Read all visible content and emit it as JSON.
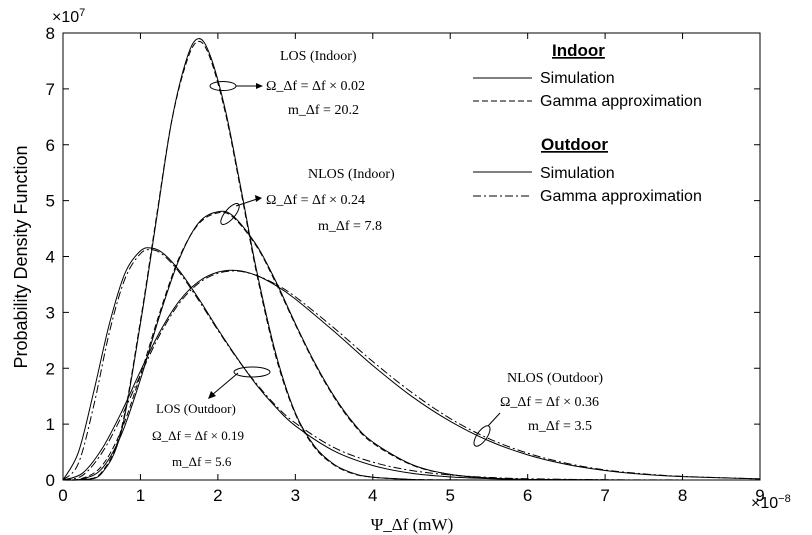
{
  "chart_data": {
    "type": "line",
    "xlabel": "Ψ_Δf  (mW)",
    "ylabel": "Probability Density Function",
    "x_multiplier": "×10^-8",
    "y_multiplier": "×10^7",
    "xlim": [
      0,
      9
    ],
    "ylim": [
      0,
      8
    ],
    "xticks": [
      "0",
      "1",
      "2",
      "3",
      "4",
      "5",
      "6",
      "7",
      "8",
      "9"
    ],
    "yticks": [
      "0",
      "1",
      "2",
      "3",
      "4",
      "5",
      "6",
      "7",
      "8"
    ],
    "grid": false,
    "legend": {
      "position": "top-right",
      "groups": [
        {
          "title": "Indoor",
          "entries": [
            {
              "label": "Simulation",
              "style": "solid"
            },
            {
              "label": "Gamma approximation",
              "style": "dashed"
            }
          ]
        },
        {
          "title": "Outdoor",
          "entries": [
            {
              "label": "Simulation",
              "style": "solid"
            },
            {
              "label": "Gamma approximation",
              "style": "dash-dot"
            }
          ]
        }
      ]
    },
    "series": [
      {
        "case": "LOS (Indoor)",
        "style": "solid",
        "x": [
          0.0,
          0.25,
          0.5,
          0.75,
          1.0,
          1.2,
          1.4,
          1.6,
          1.75,
          1.9,
          2.1,
          2.3,
          2.5,
          2.75,
          3.0,
          3.25,
          3.5,
          3.75,
          4.0,
          4.5,
          5.0,
          5.5,
          6.0
        ],
        "y": [
          0,
          0.01,
          0.12,
          0.85,
          2.8,
          4.6,
          6.4,
          7.55,
          7.9,
          7.6,
          6.6,
          5.2,
          3.75,
          2.25,
          1.2,
          0.6,
          0.28,
          0.12,
          0.05,
          0.01,
          0.002,
          0,
          0
        ]
      },
      {
        "case": "LOS (Indoor)",
        "style": "dashed",
        "x": [
          0.0,
          0.25,
          0.5,
          0.75,
          1.0,
          1.2,
          1.4,
          1.6,
          1.75,
          1.9,
          2.1,
          2.3,
          2.5,
          2.75,
          3.0,
          3.25,
          3.5,
          3.75,
          4.0,
          4.5,
          5.0,
          5.5,
          6.0
        ],
        "y": [
          0,
          0.01,
          0.14,
          0.9,
          2.85,
          4.65,
          6.4,
          7.5,
          7.85,
          7.55,
          6.55,
          5.15,
          3.7,
          2.2,
          1.18,
          0.58,
          0.27,
          0.11,
          0.05,
          0.01,
          0.002,
          0,
          0
        ]
      },
      {
        "case": "NLOS (Indoor)",
        "style": "solid",
        "x": [
          0.0,
          0.25,
          0.5,
          0.75,
          1.0,
          1.25,
          1.5,
          1.75,
          2.0,
          2.2,
          2.5,
          2.75,
          3.0,
          3.25,
          3.5,
          3.75,
          4.0,
          4.5,
          5.0,
          5.5,
          6.0,
          7.0,
          8.0,
          9.0
        ],
        "y": [
          0,
          0.02,
          0.2,
          0.8,
          1.8,
          2.95,
          3.95,
          4.6,
          4.8,
          4.72,
          4.2,
          3.55,
          2.8,
          2.1,
          1.5,
          1.02,
          0.68,
          0.28,
          0.1,
          0.035,
          0.01,
          0.001,
          0,
          0
        ]
      },
      {
        "case": "NLOS (Indoor)",
        "style": "dashed",
        "x": [
          0.0,
          0.25,
          0.5,
          0.75,
          1.0,
          1.25,
          1.5,
          1.75,
          2.0,
          2.2,
          2.5,
          2.75,
          3.0,
          3.25,
          3.5,
          3.75,
          4.0,
          4.5,
          5.0,
          5.5,
          6.0,
          7.0,
          8.0,
          9.0
        ],
        "y": [
          0,
          0.03,
          0.25,
          0.88,
          1.88,
          3.0,
          3.98,
          4.58,
          4.78,
          4.7,
          4.18,
          3.52,
          2.78,
          2.08,
          1.48,
          1.0,
          0.66,
          0.27,
          0.1,
          0.035,
          0.01,
          0.001,
          0,
          0
        ]
      },
      {
        "case": "LOS (Outdoor)",
        "style": "solid",
        "x": [
          0.0,
          0.2,
          0.4,
          0.6,
          0.8,
          1.0,
          1.15,
          1.3,
          1.5,
          1.75,
          2.0,
          2.25,
          2.5,
          2.75,
          3.0,
          3.5,
          4.0,
          4.5,
          5.0,
          5.5,
          6.0,
          7.0,
          8.0,
          9.0
        ],
        "y": [
          0,
          0.5,
          1.6,
          2.8,
          3.7,
          4.1,
          4.15,
          4.05,
          3.75,
          3.25,
          2.7,
          2.18,
          1.7,
          1.3,
          0.97,
          0.52,
          0.26,
          0.12,
          0.055,
          0.024,
          0.01,
          0.002,
          0,
          0
        ]
      },
      {
        "case": "LOS (Outdoor)",
        "style": "dash-dot",
        "x": [
          0.0,
          0.2,
          0.4,
          0.6,
          0.8,
          1.0,
          1.15,
          1.3,
          1.5,
          1.75,
          2.0,
          2.25,
          2.5,
          2.75,
          3.0,
          3.5,
          4.0,
          4.5,
          5.0,
          5.5,
          6.0,
          7.0,
          8.0,
          9.0
        ],
        "y": [
          0,
          0.3,
          1.35,
          2.65,
          3.6,
          4.05,
          4.12,
          4.02,
          3.72,
          3.22,
          2.68,
          2.17,
          1.72,
          1.33,
          1.02,
          0.58,
          0.32,
          0.17,
          0.09,
          0.046,
          0.023,
          0.005,
          0.001,
          0
        ]
      },
      {
        "case": "NLOS (Outdoor)",
        "style": "solid",
        "x": [
          0.0,
          0.25,
          0.5,
          0.75,
          1.0,
          1.25,
          1.5,
          1.75,
          2.0,
          2.25,
          2.5,
          2.75,
          3.0,
          3.5,
          4.0,
          4.5,
          5.0,
          5.5,
          6.0,
          6.5,
          7.0,
          7.5,
          8.0,
          9.0
        ],
        "y": [
          0,
          0.12,
          0.55,
          1.2,
          1.95,
          2.65,
          3.2,
          3.55,
          3.72,
          3.75,
          3.66,
          3.48,
          3.24,
          2.66,
          2.05,
          1.5,
          1.05,
          0.7,
          0.45,
          0.28,
          0.17,
          0.1,
          0.06,
          0.02
        ]
      },
      {
        "case": "NLOS (Outdoor)",
        "style": "dash-dot",
        "x": [
          0.0,
          0.25,
          0.5,
          0.75,
          1.0,
          1.25,
          1.5,
          1.75,
          2.0,
          2.25,
          2.5,
          2.75,
          3.0,
          3.5,
          4.0,
          4.5,
          5.0,
          5.5,
          6.0,
          6.5,
          7.0,
          7.5,
          8.0,
          9.0
        ],
        "y": [
          0,
          0.08,
          0.48,
          1.12,
          1.88,
          2.6,
          3.16,
          3.52,
          3.7,
          3.74,
          3.66,
          3.5,
          3.28,
          2.72,
          2.12,
          1.57,
          1.1,
          0.74,
          0.48,
          0.3,
          0.18,
          0.11,
          0.065,
          0.02
        ]
      }
    ],
    "annotations": [
      {
        "lines": [
          "LOS (Indoor)",
          "Ω_Δf = Δf × 0.02",
          "m_Δf = 20.2"
        ]
      },
      {
        "lines": [
          "NLOS (Indoor)",
          "Ω_Δf = Δf × 0.24",
          "m_Δf = 7.8"
        ]
      },
      {
        "lines": [
          "LOS (Outdoor)",
          "Ω_Δf = Δf × 0.19",
          "m_Δf = 5.6"
        ]
      },
      {
        "lines": [
          "NLOS (Outdoor)",
          "Ω_Δf = Δf × 0.36",
          "m_Δf = 3.5"
        ]
      }
    ]
  }
}
